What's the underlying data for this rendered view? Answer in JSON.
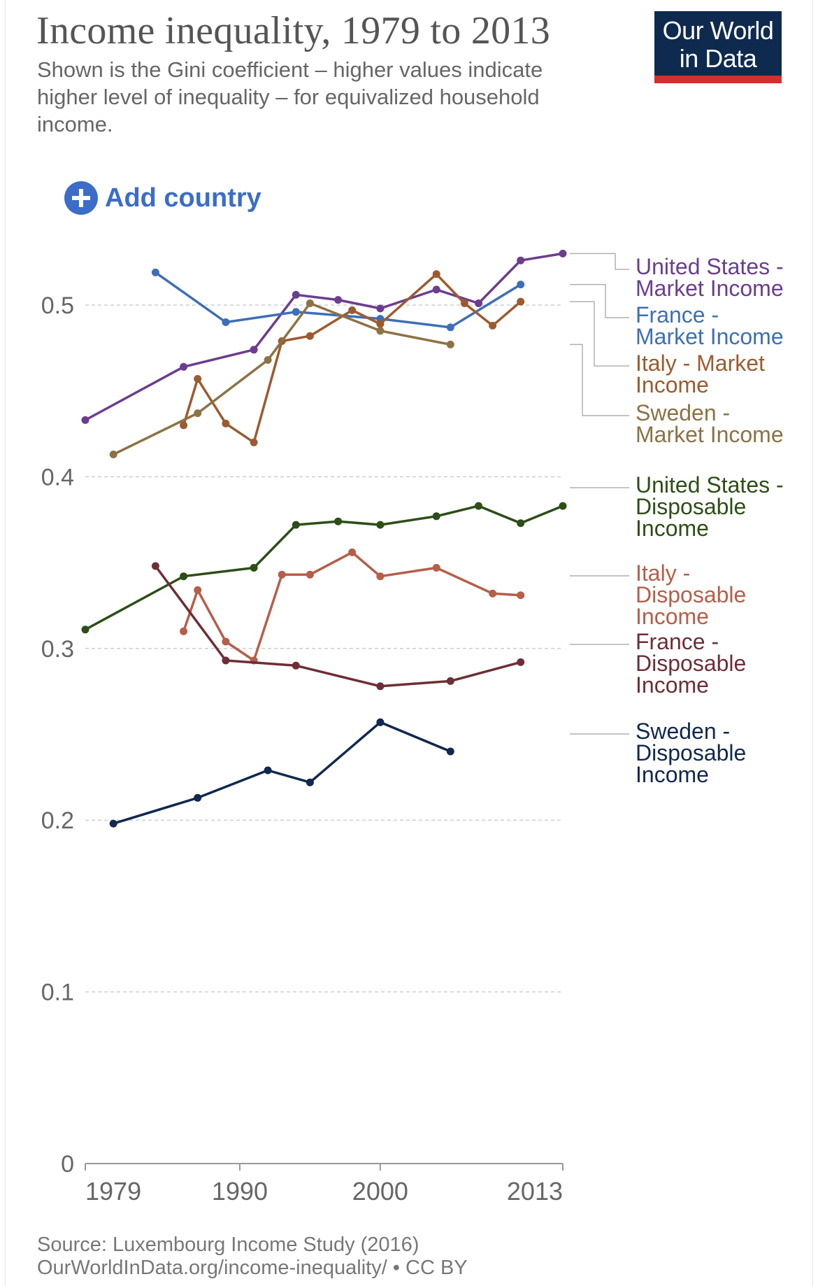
{
  "header": {
    "title": "Income inequality, 1979 to 2013",
    "subtitle": "Shown is the Gini coefficient – higher values indicate higher level of inequality – for equivalized household income."
  },
  "logo": {
    "line1": "Our World",
    "line2": "in Data",
    "bg_color": "#0f2a4f",
    "bar_color": "#d22f2f"
  },
  "controls": {
    "add_country_label": "Add country",
    "icon": "plus-circle-icon"
  },
  "footer": {
    "source": "Source: Luxembourg Income Study (2016)",
    "url_line": "OurWorldInData.org/income-inequality/ • CC BY"
  },
  "chart_data": {
    "type": "line",
    "title": "Income inequality, 1979 to 2013",
    "xlabel": "",
    "ylabel": "",
    "xlim": [
      1979,
      2013
    ],
    "ylim": [
      0,
      0.55
    ],
    "x_ticks": [
      "1979",
      "1990",
      "2000",
      "2013"
    ],
    "y_ticks": [
      "0",
      "0.1",
      "0.2",
      "0.3",
      "0.4",
      "0.5"
    ],
    "grid": true,
    "legend": "right",
    "series": [
      {
        "name": "United States - Market Income",
        "color": "#6b3d8f",
        "points": [
          [
            1979,
            0.433
          ],
          [
            1986,
            0.464
          ],
          [
            1991,
            0.474
          ],
          [
            1994,
            0.506
          ],
          [
            1997,
            0.503
          ],
          [
            2000,
            0.498
          ],
          [
            2004,
            0.509
          ],
          [
            2007,
            0.501
          ],
          [
            2010,
            0.526
          ],
          [
            2013,
            0.53
          ]
        ]
      },
      {
        "name": "France - Market Income",
        "color": "#3d6fb6",
        "points": [
          [
            1984,
            0.519
          ],
          [
            1989,
            0.49
          ],
          [
            1994,
            0.496
          ],
          [
            2000,
            0.492
          ],
          [
            2005,
            0.487
          ],
          [
            2010,
            0.512
          ]
        ]
      },
      {
        "name": "Italy - Market Income",
        "color": "#9b5b30",
        "points": [
          [
            1986,
            0.43
          ],
          [
            1987,
            0.457
          ],
          [
            1989,
            0.431
          ],
          [
            1991,
            0.42
          ],
          [
            1993,
            0.479
          ],
          [
            1995,
            0.482
          ],
          [
            1998,
            0.497
          ],
          [
            2000,
            0.489
          ],
          [
            2004,
            0.518
          ],
          [
            2006,
            0.501
          ],
          [
            2008,
            0.488
          ],
          [
            2010,
            0.502
          ]
        ]
      },
      {
        "name": "Sweden - Market Income",
        "color": "#8c7244",
        "points": [
          [
            1981,
            0.413
          ],
          [
            1987,
            0.437
          ],
          [
            1992,
            0.468
          ],
          [
            1995,
            0.501
          ],
          [
            2000,
            0.485
          ],
          [
            2005,
            0.477
          ]
        ]
      },
      {
        "name": "United States - Disposable Income",
        "color": "#2d4e17",
        "points": [
          [
            1979,
            0.311
          ],
          [
            1986,
            0.342
          ],
          [
            1991,
            0.347
          ],
          [
            1994,
            0.372
          ],
          [
            1997,
            0.374
          ],
          [
            2000,
            0.372
          ],
          [
            2004,
            0.377
          ],
          [
            2007,
            0.383
          ],
          [
            2010,
            0.373
          ],
          [
            2013,
            0.383
          ]
        ]
      },
      {
        "name": "Italy - Disposable Income",
        "color": "#b65e49",
        "points": [
          [
            1986,
            0.31
          ],
          [
            1987,
            0.334
          ],
          [
            1989,
            0.304
          ],
          [
            1991,
            0.293
          ],
          [
            1993,
            0.343
          ],
          [
            1995,
            0.343
          ],
          [
            1998,
            0.356
          ],
          [
            2000,
            0.342
          ],
          [
            2004,
            0.347
          ],
          [
            2008,
            0.332
          ],
          [
            2010,
            0.331
          ]
        ]
      },
      {
        "name": "France - Disposable Income",
        "color": "#6e2e36",
        "points": [
          [
            1984,
            0.348
          ],
          [
            1989,
            0.293
          ],
          [
            1994,
            0.29
          ],
          [
            2000,
            0.278
          ],
          [
            2005,
            0.281
          ],
          [
            2010,
            0.292
          ]
        ]
      },
      {
        "name": "Sweden - Disposable Income",
        "color": "#11284f",
        "points": [
          [
            1981,
            0.198
          ],
          [
            1987,
            0.213
          ],
          [
            1992,
            0.229
          ],
          [
            1995,
            0.222
          ],
          [
            2000,
            0.257
          ],
          [
            2005,
            0.24
          ]
        ]
      }
    ],
    "legend_entries": [
      {
        "lines": [
          "United States -",
          "Market Income"
        ],
        "color": "#6b3d8f"
      },
      {
        "lines": [
          "France -",
          "Market Income"
        ],
        "color": "#3d6fb6"
      },
      {
        "lines": [
          "Italy - Market",
          "Income"
        ],
        "color": "#9b5b30"
      },
      {
        "lines": [
          "Sweden -",
          "Market Income"
        ],
        "color": "#8c7244"
      },
      {
        "lines": [
          "United States -",
          "Disposable",
          "Income"
        ],
        "color": "#2d4e17"
      },
      {
        "lines": [
          "Italy -",
          "Disposable",
          "Income"
        ],
        "color": "#b65e49"
      },
      {
        "lines": [
          "France -",
          "Disposable",
          "Income"
        ],
        "color": "#6e2e36"
      },
      {
        "lines": [
          "Sweden -",
          "Disposable",
          "Income"
        ],
        "color": "#11284f"
      }
    ]
  }
}
